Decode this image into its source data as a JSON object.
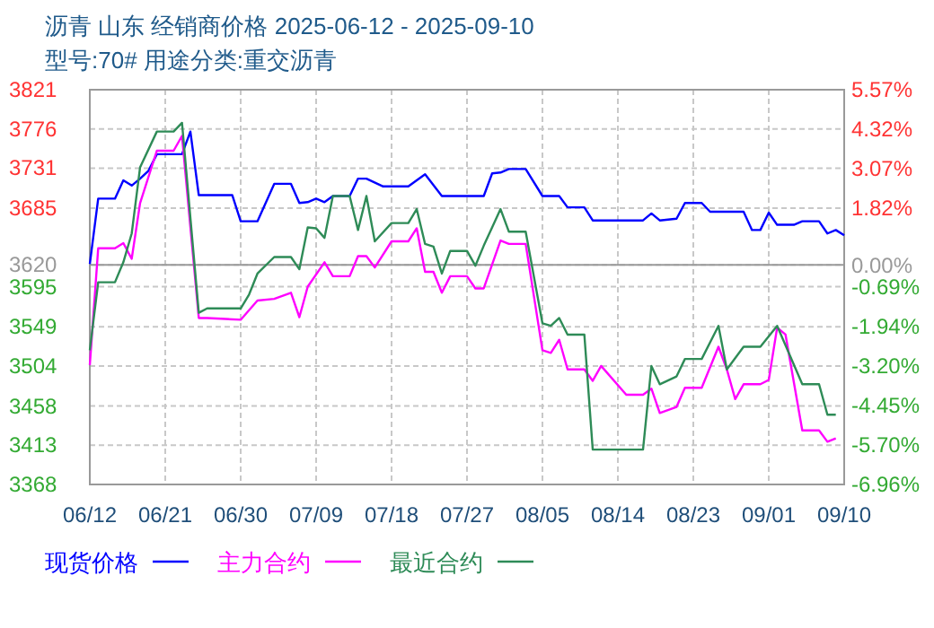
{
  "chart_data": {
    "type": "line",
    "title": "沥青  山东  经销商价格  2025-06-12 - 2025-09-10",
    "subtitle": "型号:70# 用途分类:重交沥青",
    "xlim": [
      "--06-12",
      "--09-10"
    ],
    "xticks": [
      {
        "value": "--06-12",
        "label": "06/12"
      },
      {
        "value": "--06-21",
        "label": "06/21"
      },
      {
        "value": "--06-30",
        "label": "06/30"
      },
      {
        "value": "--07-09",
        "label": "07/09"
      },
      {
        "value": "--07-18",
        "label": "07/18"
      },
      {
        "value": "--07-27",
        "label": "07/27"
      },
      {
        "value": "--08-05",
        "label": "08/05"
      },
      {
        "value": "--08-14",
        "label": "08/14"
      },
      {
        "value": "--08-23",
        "label": "08/23"
      },
      {
        "value": "--09-01",
        "label": "09/01"
      },
      {
        "value": "--09-10",
        "label": "09/10"
      }
    ],
    "ylim": [
      3368,
      3821
    ],
    "yticks": [
      3821,
      3776,
      3731,
      3685,
      3620,
      3595,
      3549,
      3504,
      3458,
      3413,
      3368
    ],
    "y2lim": [
      -6.96,
      5.57
    ],
    "y2ticks": [
      {
        "value": 5.57,
        "label": "5.57%"
      },
      {
        "value": 4.32,
        "label": "4.32%"
      },
      {
        "value": 3.07,
        "label": "3.07%"
      },
      {
        "value": 1.82,
        "label": "1.82%"
      },
      {
        "value": 0,
        "label": "0.00%"
      },
      {
        "value": -0.69,
        "label": "-0.69%"
      },
      {
        "value": -1.94,
        "label": "-1.94%"
      },
      {
        "value": -3.2,
        "label": "-3.20%"
      },
      {
        "value": -4.45,
        "label": "-4.45%"
      },
      {
        "value": -5.7,
        "label": "-5.70%"
      },
      {
        "value": -6.96,
        "label": "-6.96%"
      }
    ],
    "ref_lines": [
      {
        "axis": "y",
        "value": 3620,
        "color": "#999999"
      }
    ],
    "grid": true,
    "legend": "bottom",
    "series": [
      {
        "name": "现货价格",
        "color": "#0000ff",
        "x": [
          "--06-12",
          "--06-13",
          "--06-15",
          "--06-16",
          "--06-17",
          "--06-18",
          "--06-19",
          "--06-20",
          "--06-23",
          "--06-24",
          "--06-25",
          "--06-29",
          "--06-30",
          "--07-02",
          "--07-04",
          "--07-06",
          "--07-07",
          "--07-08",
          "--07-09",
          "--07-10",
          "--07-11",
          "--07-13",
          "--07-14",
          "--07-15",
          "--07-17",
          "--07-20",
          "--07-22",
          "--07-24",
          "--07-29",
          "--07-30",
          "--07-31",
          "--08-01",
          "--08-03",
          "--08-05",
          "--08-07",
          "--08-08",
          "--08-10",
          "--08-11",
          "--08-17",
          "--08-18",
          "--08-19",
          "--08-21",
          "--08-22",
          "--08-24",
          "--08-25",
          "--08-29",
          "--08-30",
          "--08-31",
          "--09-01",
          "--09-02",
          "--09-04",
          "--09-05",
          "--09-07",
          "--09-08",
          "--09-09",
          "--09-10"
        ],
        "values": [
          3621,
          3696,
          3696,
          3717,
          3711,
          3719,
          3728,
          3747,
          3747,
          3773,
          3700,
          3700,
          3670,
          3670,
          3713,
          3713,
          3691,
          3692,
          3696,
          3692,
          3699,
          3699,
          3719,
          3719,
          3710,
          3710,
          3724,
          3699,
          3699,
          3725,
          3726,
          3730,
          3730,
          3699,
          3699,
          3686,
          3686,
          3671,
          3671,
          3679,
          3671,
          3673,
          3691,
          3691,
          3681,
          3681,
          3660,
          3660,
          3680,
          3666,
          3666,
          3670,
          3670,
          3656,
          3660,
          3654
        ]
      },
      {
        "name": "主力合约",
        "color": "#ff00ff",
        "x": [
          "--06-12",
          "--06-13",
          "--06-15",
          "--06-16",
          "--06-17",
          "--06-18",
          "--06-20",
          "--06-22",
          "--06-23",
          "--06-25",
          "--06-26",
          "--06-30",
          "--07-02",
          "--07-04",
          "--07-06",
          "--07-07",
          "--07-08",
          "--07-10",
          "--07-11",
          "--07-13",
          "--07-14",
          "--07-15",
          "--07-16",
          "--07-18",
          "--07-20",
          "--07-21",
          "--07-22",
          "--07-23",
          "--07-24",
          "--07-25",
          "--07-27",
          "--07-28",
          "--07-29",
          "--07-31",
          "--08-01",
          "--08-03",
          "--08-05",
          "--08-06",
          "--08-07",
          "--08-08",
          "--08-10",
          "--08-11",
          "--08-12",
          "--08-15",
          "--08-17",
          "--08-18",
          "--08-19",
          "--08-21",
          "--08-22",
          "--08-24",
          "--08-26",
          "--08-27",
          "--08-28",
          "--08-29",
          "--08-31",
          "--09-01",
          "--09-02",
          "--09-03",
          "--09-05",
          "--09-07",
          "--09-08",
          "--09-09"
        ],
        "values": [
          3505,
          3639,
          3639,
          3645,
          3627,
          3691,
          3751,
          3751,
          3768,
          3559,
          3559,
          3557,
          3579,
          3581,
          3588,
          3560,
          3595,
          3623,
          3607,
          3607,
          3630,
          3630,
          3617,
          3647,
          3647,
          3662,
          3612,
          3612,
          3588,
          3607,
          3607,
          3593,
          3593,
          3648,
          3644,
          3644,
          3522,
          3519,
          3534,
          3500,
          3500,
          3487,
          3504,
          3471,
          3471,
          3478,
          3450,
          3457,
          3479,
          3479,
          3526,
          3500,
          3466,
          3483,
          3483,
          3488,
          3548,
          3540,
          3430,
          3430,
          3417,
          3421
        ]
      },
      {
        "name": "最近合约",
        "color": "#2e8b57",
        "x": [
          "--06-12",
          "--06-13",
          "--06-15",
          "--06-16",
          "--06-17",
          "--06-18",
          "--06-20",
          "--06-22",
          "--06-23",
          "--06-25",
          "--06-26",
          "--06-30",
          "--07-01",
          "--07-02",
          "--07-04",
          "--07-06",
          "--07-07",
          "--07-08",
          "--07-09",
          "--07-10",
          "--07-11",
          "--07-13",
          "--07-14",
          "--07-15",
          "--07-16",
          "--07-18",
          "--07-20",
          "--07-21",
          "--07-22",
          "--07-23",
          "--07-24",
          "--07-25",
          "--07-27",
          "--07-28",
          "--07-29",
          "--07-31",
          "--08-01",
          "--08-03",
          "--08-05",
          "--08-06",
          "--08-07",
          "--08-08",
          "--08-10",
          "--08-11",
          "--08-17",
          "--08-18",
          "--08-19",
          "--08-21",
          "--08-22",
          "--08-24",
          "--08-26",
          "--08-27",
          "--08-29",
          "--08-31",
          "--09-02",
          "--09-05",
          "--09-07",
          "--09-08",
          "--09-09"
        ],
        "values": [
          3522,
          3600,
          3600,
          3623,
          3656,
          3732,
          3773,
          3773,
          3783,
          3565,
          3570,
          3570,
          3586,
          3610,
          3629,
          3629,
          3615,
          3663,
          3662,
          3651,
          3699,
          3699,
          3660,
          3699,
          3647,
          3668,
          3668,
          3684,
          3644,
          3641,
          3610,
          3636,
          3636,
          3619,
          3642,
          3684,
          3658,
          3658,
          3553,
          3550,
          3559,
          3540,
          3540,
          3408,
          3408,
          3504,
          3483,
          3492,
          3512,
          3512,
          3550,
          3500,
          3526,
          3526,
          3550,
          3483,
          3483,
          3448,
          3448
        ]
      }
    ]
  }
}
